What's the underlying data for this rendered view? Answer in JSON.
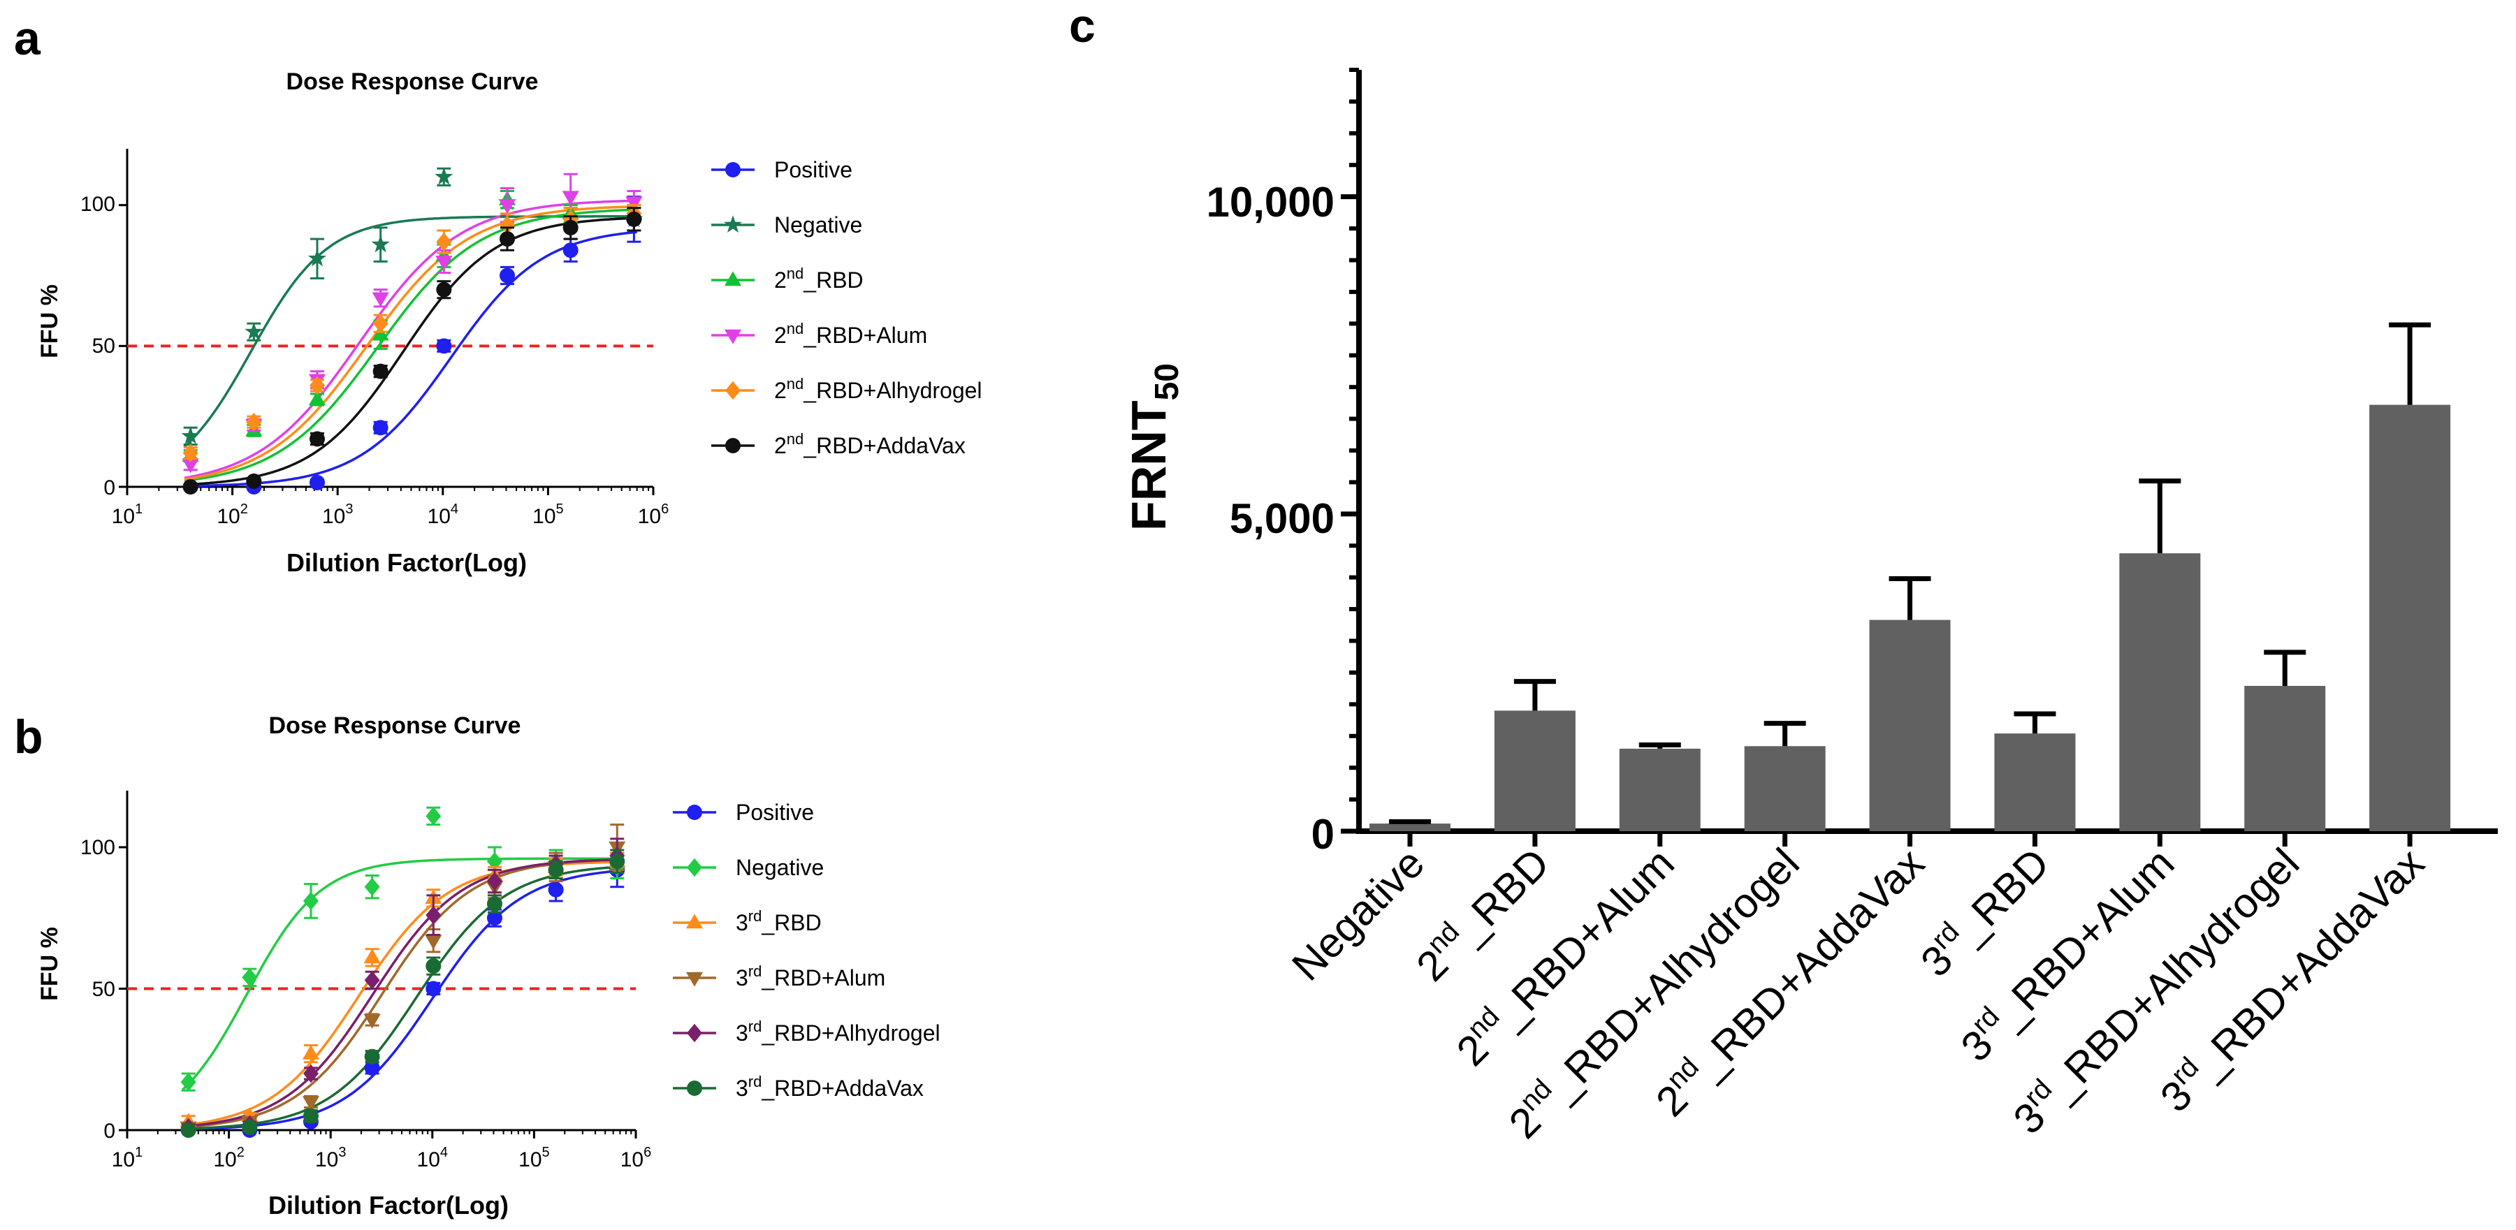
{
  "panel_labels": {
    "a": "a",
    "b": "b",
    "c": "c"
  },
  "colors": {
    "positive": "#1f1ff0",
    "negative_a": "#1a7a52",
    "negative_b": "#22cc44",
    "rbd2": "#11c233",
    "alum2": "#e040e8",
    "alhydrogel2": "#ff8c1a",
    "addavax2": "#111111",
    "rbd3": "#ff8c1a",
    "alum3": "#a0692a",
    "alhydrogel3": "#7a1f6b",
    "addavax3": "#1a6b33",
    "bar_fill": "#616161",
    "cutoff_line": "#ee2222"
  },
  "chart_data": [
    {
      "id": "a",
      "type": "line",
      "title": "Dose Response Curve",
      "xlabel": "Dilution Factor(Log)",
      "ylabel": "FFU %",
      "xscale": "log",
      "xlim": [
        10,
        1000000
      ],
      "ylim": [
        0,
        120
      ],
      "x_ticks": [
        {
          "value": 10,
          "base": "10",
          "exp": "1"
        },
        {
          "value": 100,
          "base": "10",
          "exp": "2"
        },
        {
          "value": 1000,
          "base": "10",
          "exp": "3"
        },
        {
          "value": 10000,
          "base": "10",
          "exp": "4"
        },
        {
          "value": 100000,
          "base": "10",
          "exp": "5"
        },
        {
          "value": 1000000,
          "base": "10",
          "exp": "6"
        }
      ],
      "y_ticks": [
        "0",
        "50",
        "100"
      ],
      "reference_line": {
        "y": 50,
        "style": "dashed"
      },
      "x_points": [
        40,
        160,
        640,
        2560,
        10240,
        40960,
        163840,
        655360
      ],
      "series": [
        {
          "name": "Positive",
          "prefix": "",
          "sup": "",
          "suffix": "Positive",
          "color_key": "positive",
          "marker": "circle",
          "ic50": 12000,
          "hill": 1.0,
          "top": 92,
          "values": [
            0,
            0,
            1.5,
            21,
            50,
            75,
            84,
            95
          ],
          "errors": [
            0,
            0,
            1,
            2,
            2,
            3,
            4,
            8
          ]
        },
        {
          "name": "Negative",
          "prefix": "",
          "sup": "",
          "suffix": "Negative",
          "color_key": "negative_a",
          "marker": "star",
          "ic50": 150,
          "hill": 1.2,
          "top": 96,
          "values": [
            18,
            55,
            81,
            86,
            110,
            101,
            95,
            95
          ],
          "errors": [
            3,
            3,
            7,
            6,
            3,
            5,
            4,
            4
          ]
        },
        {
          "name": "2nd_RBD",
          "prefix": "2",
          "sup": "nd",
          "suffix": "_RBD",
          "color_key": "rbd2",
          "marker": "triangle-up",
          "ic50": 2400,
          "hill": 0.9,
          "top": 99,
          "values": [
            11,
            20,
            31,
            54,
            82,
            102,
            97,
            97
          ],
          "errors": [
            2,
            2,
            2,
            5,
            4,
            3,
            3,
            3
          ]
        },
        {
          "name": "2nd_RBD+Alum",
          "prefix": "2",
          "sup": "nd",
          "suffix": "_RBD+Alum",
          "color_key": "alum2",
          "marker": "triangle-down",
          "ic50": 1600,
          "hill": 0.9,
          "top": 102,
          "values": [
            8,
            22,
            38,
            67,
            80,
            100,
            103,
            101
          ],
          "errors": [
            2,
            2,
            3,
            3,
            4,
            6,
            8,
            4
          ]
        },
        {
          "name": "2nd_RBD+Alhydrogel",
          "prefix": "2",
          "sup": "nd",
          "suffix": "_RBD+Alhydrogel",
          "color_key": "alhydrogel2",
          "marker": "diamond",
          "ic50": 1900,
          "hill": 0.9,
          "top": 100,
          "values": [
            12,
            23,
            36,
            58,
            87,
            93,
            95,
            97
          ],
          "errors": [
            2,
            2,
            2,
            3,
            4,
            4,
            4,
            3
          ]
        },
        {
          "name": "2nd_RBD+AddaVax",
          "prefix": "2",
          "sup": "nd",
          "suffix": "_RBD+AddaVax",
          "color_key": "addavax2",
          "marker": "circle",
          "ic50": 4200,
          "hill": 1.0,
          "top": 96,
          "values": [
            0,
            2,
            17,
            41,
            70,
            88,
            92,
            95
          ],
          "errors": [
            0,
            1,
            2,
            2,
            3,
            4,
            4,
            4
          ]
        }
      ],
      "legend": {
        "position": "right"
      }
    },
    {
      "id": "b",
      "type": "line",
      "title": "Dose Response Curve",
      "xlabel": "Dilution Factor(Log)",
      "ylabel": "FFU %",
      "xscale": "log",
      "xlim": [
        10,
        1000000
      ],
      "ylim": [
        0,
        120
      ],
      "x_ticks": [
        {
          "value": 10,
          "base": "10",
          "exp": "1"
        },
        {
          "value": 100,
          "base": "10",
          "exp": "2"
        },
        {
          "value": 1000,
          "base": "10",
          "exp": "3"
        },
        {
          "value": 10000,
          "base": "10",
          "exp": "4"
        },
        {
          "value": 100000,
          "base": "10",
          "exp": "5"
        },
        {
          "value": 1000000,
          "base": "10",
          "exp": "6"
        }
      ],
      "y_ticks": [
        "0",
        "50",
        "100"
      ],
      "reference_line": {
        "y": 50,
        "style": "dashed"
      },
      "x_points": [
        40,
        160,
        640,
        2560,
        10240,
        40960,
        163840,
        655360
      ],
      "series": [
        {
          "name": "Positive",
          "prefix": "",
          "sup": "",
          "suffix": "Positive",
          "color_key": "positive",
          "marker": "circle",
          "ic50": 10000,
          "hill": 1.0,
          "top": 93,
          "values": [
            0,
            0,
            3,
            22,
            50,
            75,
            85,
            92
          ],
          "errors": [
            0,
            0,
            1,
            2,
            2,
            3,
            4,
            6
          ]
        },
        {
          "name": "Negative",
          "prefix": "",
          "sup": "",
          "suffix": "Negative",
          "color_key": "negative_b",
          "marker": "diamond",
          "ic50": 150,
          "hill": 1.2,
          "top": 96,
          "values": [
            17,
            54,
            81,
            86,
            111,
            95,
            95,
            93
          ],
          "errors": [
            3,
            3,
            6,
            4,
            3,
            5,
            4,
            4
          ]
        },
        {
          "name": "3rd_RBD",
          "prefix": "3",
          "sup": "rd",
          "suffix": "_RBD",
          "color_key": "rbd3",
          "marker": "triangle-up",
          "ic50": 1900,
          "hill": 1.0,
          "top": 95,
          "values": [
            3,
            5,
            27,
            61,
            82,
            90,
            93,
            95
          ],
          "errors": [
            2,
            1,
            3,
            3,
            3,
            3,
            3,
            3
          ]
        },
        {
          "name": "3rd_RBD+Alum",
          "prefix": "3",
          "sup": "rd",
          "suffix": "_RBD+Alum",
          "color_key": "alum3",
          "marker": "triangle-down",
          "ic50": 3200,
          "hill": 1.0,
          "top": 96,
          "values": [
            1,
            3,
            10,
            39,
            67,
            86,
            93,
            100
          ],
          "errors": [
            1,
            1,
            2,
            2,
            4,
            4,
            5,
            8
          ]
        },
        {
          "name": "3rd_RBD+Alhydrogel",
          "prefix": "3",
          "sup": "rd",
          "suffix": "_RBD+Alhydrogel",
          "color_key": "alhydrogel3",
          "marker": "diamond",
          "ic50": 2600,
          "hill": 1.0,
          "top": 96,
          "values": [
            1,
            2,
            20,
            53,
            76,
            88,
            94,
            97
          ],
          "errors": [
            1,
            1,
            2,
            3,
            7,
            4,
            3,
            6
          ]
        },
        {
          "name": "3rd_RBD+AddaVax",
          "prefix": "3",
          "sup": "rd",
          "suffix": "_RBD+AddaVax",
          "color_key": "addavax3",
          "marker": "circle",
          "ic50": 7000,
          "hill": 1.0,
          "top": 94,
          "values": [
            0,
            1,
            5,
            26,
            58,
            80,
            92,
            95
          ],
          "errors": [
            0,
            1,
            2,
            2,
            3,
            3,
            3,
            4
          ]
        }
      ],
      "legend": {
        "position": "right"
      }
    },
    {
      "id": "c",
      "type": "bar",
      "title": "",
      "xlabel": "",
      "ylabel": "FRNT",
      "ylabel_sub": "50",
      "ylim": [
        0,
        12000
      ],
      "y_ticks": [
        "0",
        "5,000",
        "10,000"
      ],
      "y_tick_values": [
        0,
        5000,
        10000
      ],
      "categories": [
        {
          "name": "Negative",
          "prefix": "",
          "sup": "",
          "suffix": "Negative"
        },
        {
          "name": "2nd_RBD",
          "prefix": "2",
          "sup": "nd",
          "suffix": "_RBD"
        },
        {
          "name": "2nd_RBD+Alum",
          "prefix": "2",
          "sup": "nd",
          "suffix": "_RBD+Alum"
        },
        {
          "name": "2nd_RBD+Alhydrogel",
          "prefix": "2",
          "sup": "nd",
          "suffix": "_RBD+Alhydrogel"
        },
        {
          "name": "2nd_RBD+AddaVax",
          "prefix": "2",
          "sup": "nd",
          "suffix": "_RBD+AddaVax"
        },
        {
          "name": "3rd_RBD",
          "prefix": "3",
          "sup": "rd",
          "suffix": "_RBD"
        },
        {
          "name": "3rd_RBD+Alum",
          "prefix": "3",
          "sup": "rd",
          "suffix": "_RBD+Alum"
        },
        {
          "name": "3rd_RBD+Alhydrogel",
          "prefix": "3",
          "sup": "rd",
          "suffix": "_RBD+Alhydrogel"
        },
        {
          "name": "3rd_RBD+AddaVax",
          "prefix": "3",
          "sup": "rd",
          "suffix": "_RBD+AddaVax"
        }
      ],
      "values": [
        120,
        1900,
        1300,
        1340,
        3330,
        1540,
        4380,
        2290,
        6720
      ],
      "errors": [
        30,
        460,
        60,
        360,
        650,
        310,
        1140,
        530,
        1260
      ]
    }
  ]
}
